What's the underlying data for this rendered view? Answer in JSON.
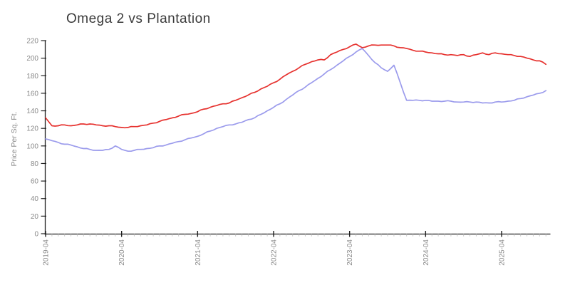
{
  "chart_data": {
    "type": "line",
    "title": "Omega 2 vs Plantation",
    "xlabel": "",
    "ylabel": "Price Per Sq. Ft.",
    "ylim": [
      0,
      220
    ],
    "y_ticks": [
      0,
      20,
      40,
      60,
      80,
      100,
      120,
      140,
      160,
      180,
      200,
      220
    ],
    "x_major_tick_labels": [
      "2019-04",
      "2020-04",
      "2021-04",
      "2022-04",
      "2023-04",
      "2024-04",
      "2025-04"
    ],
    "grid": false,
    "legend_position": "none",
    "axis_color": "#1f1f1f",
    "minor_tick_color": "#c9c9c9",
    "tick_label_color": "#8a8a8a",
    "title_color": "#3a3a3a",
    "x": [
      "2019-04",
      "2019-05",
      "2019-06",
      "2019-07",
      "2019-08",
      "2019-09",
      "2019-10",
      "2019-11",
      "2019-12",
      "2020-01",
      "2020-02",
      "2020-03",
      "2020-04",
      "2020-05",
      "2020-06",
      "2020-07",
      "2020-08",
      "2020-09",
      "2020-10",
      "2020-11",
      "2020-12",
      "2021-01",
      "2021-02",
      "2021-03",
      "2021-04",
      "2021-05",
      "2021-06",
      "2021-07",
      "2021-08",
      "2021-09",
      "2021-10",
      "2021-11",
      "2021-12",
      "2022-01",
      "2022-02",
      "2022-03",
      "2022-04",
      "2022-05",
      "2022-06",
      "2022-07",
      "2022-08",
      "2022-09",
      "2022-10",
      "2022-11",
      "2022-12",
      "2023-01",
      "2023-02",
      "2023-03",
      "2023-04",
      "2023-05",
      "2023-06",
      "2023-07",
      "2023-08",
      "2023-09",
      "2023-10",
      "2023-11",
      "2023-12",
      "2024-01",
      "2024-02",
      "2024-03",
      "2024-04",
      "2024-05",
      "2024-06",
      "2024-07",
      "2024-08",
      "2024-09",
      "2024-10",
      "2024-11",
      "2024-12",
      "2025-01",
      "2025-02",
      "2025-03",
      "2025-04",
      "2025-05",
      "2025-06",
      "2025-07",
      "2025-08",
      "2025-09",
      "2025-10",
      "2025-11"
    ],
    "series": [
      {
        "name": "Omega 2",
        "color": "#e6312e",
        "values": [
          132,
          123,
          123,
          124,
          123,
          124,
          125,
          125,
          124,
          123,
          123,
          122,
          121,
          121,
          122,
          123,
          124,
          126,
          128,
          130,
          132,
          134,
          136,
          137,
          139,
          142,
          144,
          146,
          148,
          149,
          152,
          155,
          158,
          161,
          165,
          168,
          172,
          176,
          181,
          185,
          189,
          193,
          196,
          198,
          198,
          204,
          207,
          210,
          213,
          216,
          212,
          214,
          215,
          215,
          215,
          214,
          212,
          211,
          209,
          208,
          207,
          206,
          205,
          204,
          204,
          203,
          204,
          202,
          204,
          206,
          204,
          206,
          205,
          204,
          203,
          202,
          200,
          198,
          197,
          193
        ]
      },
      {
        "name": "Plantation",
        "color": "#9b9bec",
        "values": [
          108,
          106,
          104,
          102,
          101,
          99,
          97,
          96,
          95,
          95,
          96,
          100,
          96,
          94,
          95,
          96,
          97,
          98,
          100,
          101,
          103,
          105,
          107,
          109,
          111,
          114,
          117,
          120,
          122,
          124,
          125,
          127,
          130,
          132,
          136,
          140,
          144,
          148,
          153,
          158,
          163,
          167,
          172,
          177,
          182,
          187,
          192,
          197,
          202,
          207,
          211,
          203,
          195,
          189,
          185,
          192,
          172,
          152,
          152,
          152,
          152,
          151,
          151,
          151,
          151,
          150,
          150,
          150,
          150,
          149,
          149,
          150,
          150,
          151,
          152,
          154,
          156,
          158,
          160,
          163
        ]
      }
    ]
  }
}
